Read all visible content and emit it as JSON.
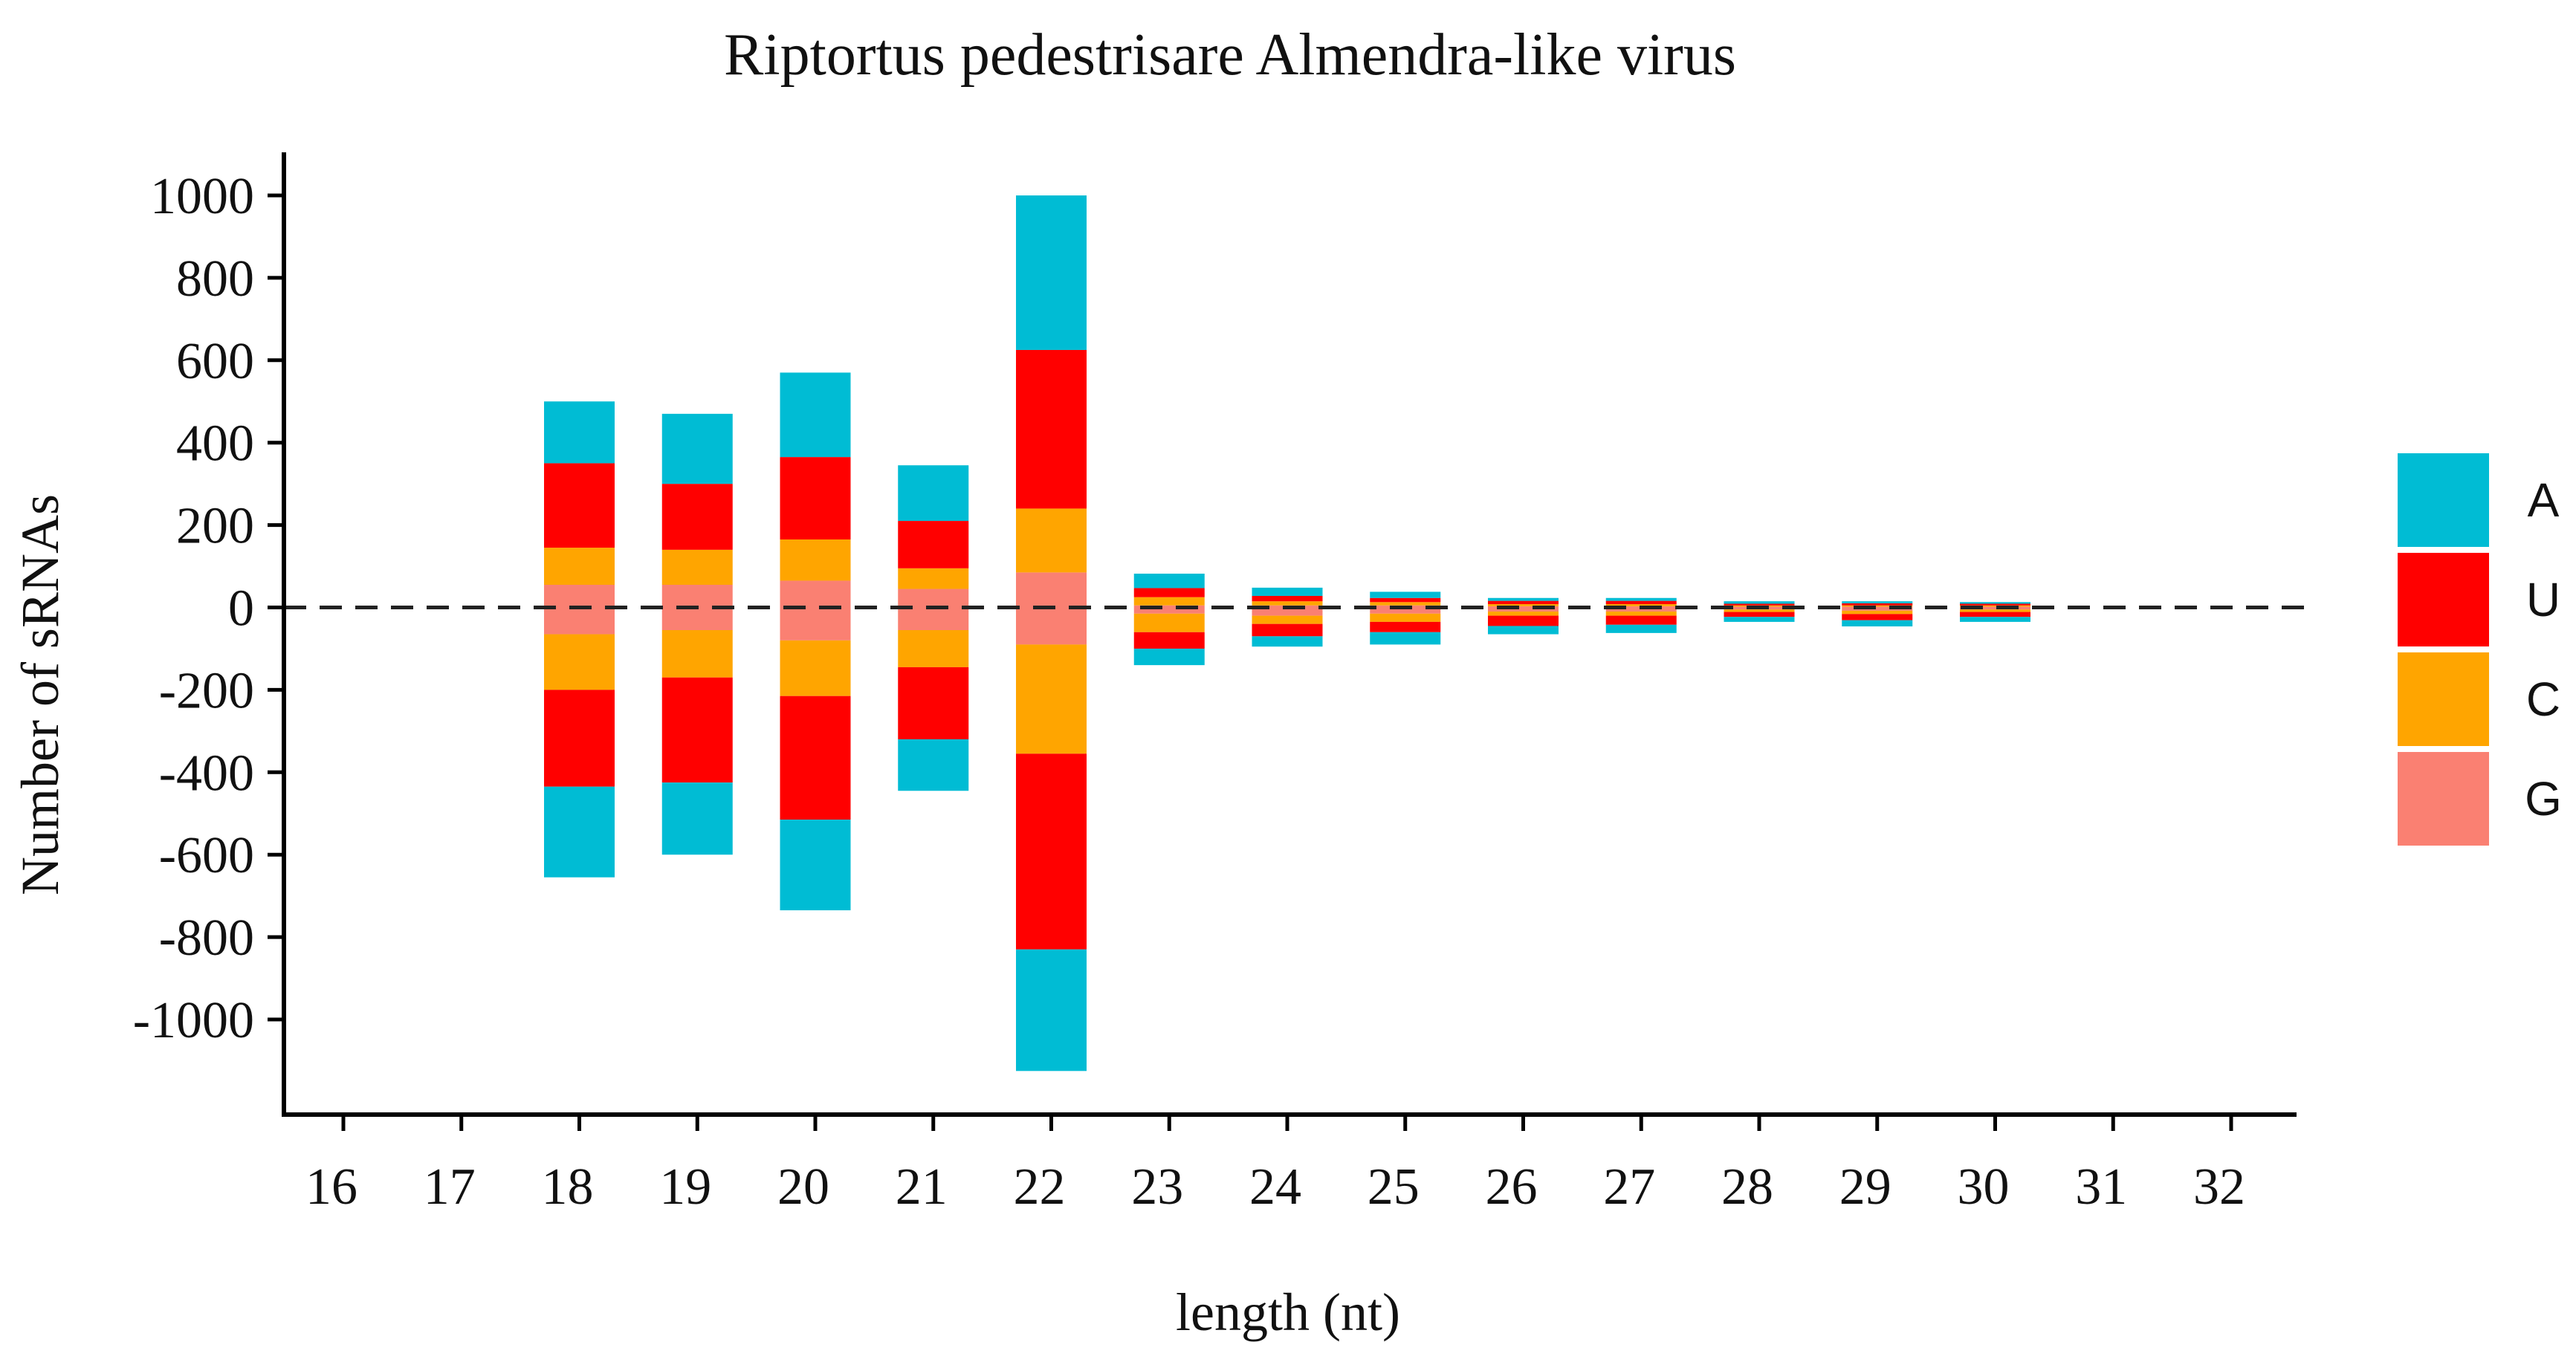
{
  "chart_data": {
    "type": "bar",
    "subtype": "diverging-stacked",
    "title": "Riptortus pedestrisare Almendra-like virus",
    "xlabel": "length (nt)",
    "ylabel": "Number of sRNAs",
    "ylim": [
      -1150,
      1100
    ],
    "yticks": [
      1000,
      800,
      600,
      400,
      200,
      0,
      -200,
      -400,
      -600,
      -800,
      -1000
    ],
    "categories": [
      "16",
      "17",
      "18",
      "19",
      "20",
      "21",
      "22",
      "23",
      "24",
      "25",
      "26",
      "27",
      "28",
      "29",
      "30",
      "31",
      "32"
    ],
    "stack_order": [
      "G",
      "C",
      "U",
      "A"
    ],
    "series": [
      {
        "name": "A",
        "color": "#00BCD4",
        "positive": [
          0,
          0,
          150,
          170,
          205,
          135,
          375,
          35,
          20,
          15,
          7,
          7,
          6,
          5,
          4,
          0,
          0
        ],
        "negative": [
          0,
          0,
          -220,
          -175,
          -220,
          -125,
          -295,
          -40,
          -25,
          -30,
          -20,
          -20,
          -12,
          -15,
          -12,
          0,
          0
        ]
      },
      {
        "name": "U",
        "color": "#FF0000",
        "positive": [
          0,
          0,
          205,
          160,
          200,
          115,
          385,
          22,
          13,
          10,
          8,
          8,
          4,
          5,
          4,
          0,
          0
        ],
        "negative": [
          0,
          0,
          -235,
          -255,
          -300,
          -175,
          -475,
          -40,
          -30,
          -25,
          -25,
          -22,
          -12,
          -15,
          -12,
          0,
          0
        ]
      },
      {
        "name": "C",
        "color": "#FFA500",
        "positive": [
          0,
          0,
          90,
          85,
          100,
          50,
          155,
          20,
          10,
          8,
          5,
          5,
          3,
          3,
          3,
          0,
          0
        ],
        "negative": [
          0,
          0,
          -135,
          -115,
          -135,
          -90,
          -265,
          -45,
          -20,
          -20,
          -10,
          -10,
          -6,
          -8,
          -6,
          0,
          0
        ]
      },
      {
        "name": "G",
        "color": "#FA8072",
        "positive": [
          0,
          0,
          55,
          55,
          65,
          45,
          85,
          5,
          5,
          5,
          3,
          3,
          2,
          2,
          2,
          0,
          0
        ],
        "negative": [
          0,
          0,
          -65,
          -55,
          -80,
          -55,
          -90,
          -15,
          -20,
          -15,
          -10,
          -10,
          -5,
          -8,
          -5,
          0,
          0
        ]
      }
    ],
    "zero_line": "dashed",
    "legend": "right"
  },
  "legend": {
    "items": [
      {
        "label": "A",
        "color": "#00BCD4"
      },
      {
        "label": "U",
        "color": "#FF0000"
      },
      {
        "label": "C",
        "color": "#FFA500"
      },
      {
        "label": "G",
        "color": "#FA8072"
      }
    ]
  }
}
